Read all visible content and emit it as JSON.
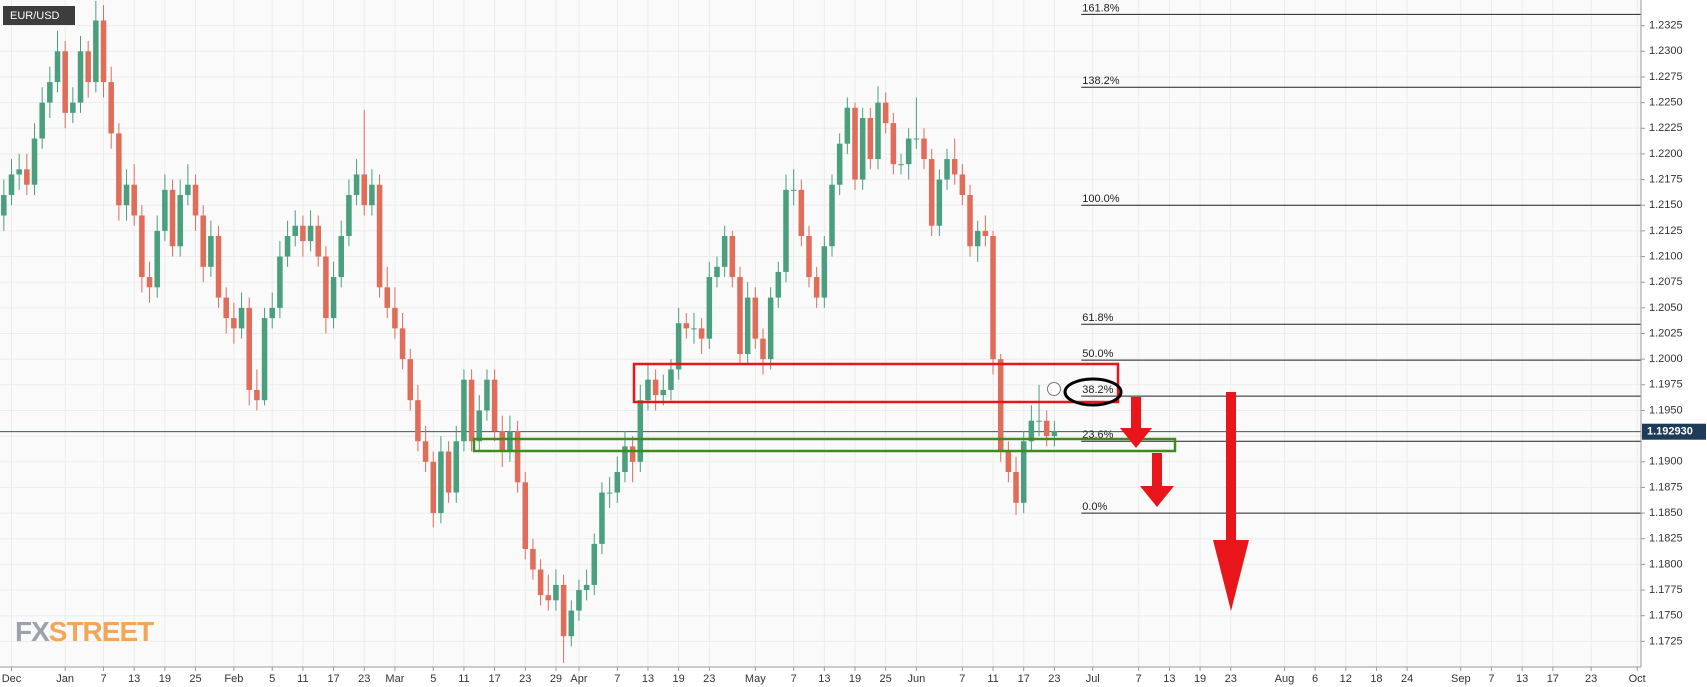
{
  "chart_data": {
    "type": "candlestick",
    "symbol": "EUR/USD",
    "logo_fx": "FX",
    "logo_street": "STREET",
    "up_color": "#4a9f7f",
    "down_color": "#e06c5a",
    "grid": true,
    "xlim": [
      -0.5,
      213.5
    ],
    "ylim": [
      1.17,
      1.235
    ],
    "yticks": [
      1.2325,
      {
        "value": 1.23,
        "label": "1.2300"
      },
      1.2275,
      {
        "value": 1.225,
        "label": "1.2250"
      },
      1.2225,
      {
        "value": 1.22,
        "label": "1.2200"
      },
      1.2175,
      {
        "value": 1.215,
        "label": "1.2150"
      },
      1.2125,
      {
        "value": 1.21,
        "label": "1.2100"
      },
      1.2075,
      {
        "value": 1.205,
        "label": "1.2050"
      },
      1.2025,
      {
        "value": 1.2,
        "label": "1.2000"
      },
      1.1975,
      {
        "value": 1.195,
        "label": "1.1950"
      },
      1.1925,
      {
        "value": 1.19,
        "label": "1.1900"
      },
      1.1875,
      {
        "value": 1.185,
        "label": "1.1850"
      },
      1.1825,
      {
        "value": 1.18,
        "label": "1.1800"
      },
      1.1775,
      {
        "value": 1.175,
        "label": "1.1750"
      },
      1.1725
    ],
    "xticks": [
      {
        "value": 1,
        "label": "Dec"
      },
      {
        "value": 8,
        "label": "Jan"
      },
      {
        "value": 13,
        "label": "7"
      },
      {
        "value": 17,
        "label": "13"
      },
      {
        "value": 21,
        "label": "19"
      },
      {
        "value": 25,
        "label": "25"
      },
      {
        "value": 30,
        "label": "Feb"
      },
      {
        "value": 35,
        "label": "5"
      },
      {
        "value": 39,
        "label": "11"
      },
      {
        "value": 43,
        "label": "17"
      },
      {
        "value": 47,
        "label": "23"
      },
      {
        "value": 51,
        "label": "Mar"
      },
      {
        "value": 56,
        "label": "5"
      },
      {
        "value": 60,
        "label": "11"
      },
      {
        "value": 64,
        "label": "17"
      },
      {
        "value": 68,
        "label": "23"
      },
      {
        "value": 72,
        "label": "29"
      },
      {
        "value": 75,
        "label": "Apr"
      },
      {
        "value": 80,
        "label": "7"
      },
      {
        "value": 84,
        "label": "13"
      },
      {
        "value": 88,
        "label": "19"
      },
      {
        "value": 92,
        "label": "23"
      },
      {
        "value": 98,
        "label": "May"
      },
      {
        "value": 103,
        "label": "7"
      },
      {
        "value": 107,
        "label": "13"
      },
      {
        "value": 111,
        "label": "19"
      },
      {
        "value": 115,
        "label": "25"
      },
      {
        "value": 119,
        "label": "Jun"
      },
      {
        "value": 125,
        "label": "7"
      },
      {
        "value": 129,
        "label": "11"
      },
      {
        "value": 133,
        "label": "17"
      },
      {
        "value": 137,
        "label": "23"
      },
      {
        "value": 142,
        "label": "Jul"
      },
      {
        "value": 148,
        "label": "7"
      },
      {
        "value": 152,
        "label": "13"
      },
      {
        "value": 156,
        "label": "19"
      },
      {
        "value": 160,
        "label": "23"
      },
      {
        "value": 167,
        "label": "Aug"
      },
      {
        "value": 171,
        "label": "6"
      },
      {
        "value": 175,
        "label": "12"
      },
      {
        "value": 179,
        "label": "18"
      },
      {
        "value": 183,
        "label": "24"
      },
      {
        "value": 190,
        "label": "Sep"
      },
      {
        "value": 194,
        "label": "7"
      },
      {
        "value": 198,
        "label": "13"
      },
      {
        "value": 202,
        "label": "17"
      },
      {
        "value": 207,
        "label": "23"
      },
      {
        "value": 213,
        "label": "Oct"
      }
    ],
    "last_price": {
      "value": 1.19293,
      "label": "1.192930"
    },
    "fib_x": 140.5,
    "fib_levels": [
      {
        "value": 1.2336,
        "label": "161.8%"
      },
      {
        "value": 1.2265,
        "label": "138.2%"
      },
      {
        "value": 1.215,
        "label": "100.0%"
      },
      {
        "value": 1.2034,
        "label": "61.8%"
      },
      {
        "value": 1.1999,
        "label": "50.0%"
      },
      {
        "value": 1.1964,
        "label": "38.2%"
      },
      {
        "value": 1.192,
        "label": "23.6%"
      },
      {
        "value": 1.185,
        "label": "0.0%"
      }
    ],
    "candles": [
      [
        1.214,
        1.2175,
        1.2125,
        1.216
      ],
      [
        1.216,
        1.2195,
        1.215,
        1.218
      ],
      [
        1.218,
        1.22,
        1.2165,
        1.2185
      ],
      [
        1.2185,
        1.22,
        1.216,
        1.217
      ],
      [
        1.217,
        1.223,
        1.216,
        1.2215
      ],
      [
        1.2215,
        1.2265,
        1.2205,
        1.225
      ],
      [
        1.225,
        1.2285,
        1.2235,
        1.227
      ],
      [
        1.227,
        1.232,
        1.226,
        1.23
      ],
      [
        1.23,
        1.231,
        1.2225,
        1.224
      ],
      [
        1.224,
        1.2265,
        1.223,
        1.225
      ],
      [
        1.225,
        1.2315,
        1.224,
        1.23
      ],
      [
        1.23,
        1.231,
        1.2255,
        1.227
      ],
      [
        1.227,
        1.2349,
        1.226,
        1.233
      ],
      [
        1.233,
        1.2345,
        1.2255,
        1.227
      ],
      [
        1.227,
        1.2285,
        1.2205,
        1.222
      ],
      [
        1.222,
        1.223,
        1.2135,
        1.215
      ],
      [
        1.215,
        1.2185,
        1.2135,
        1.217
      ],
      [
        1.217,
        1.219,
        1.213,
        1.214
      ],
      [
        1.214,
        1.215,
        1.2065,
        1.208
      ],
      [
        1.208,
        1.2095,
        1.2055,
        1.207
      ],
      [
        1.207,
        1.214,
        1.206,
        1.2125
      ],
      [
        1.2125,
        1.218,
        1.2115,
        1.2165
      ],
      [
        1.2165,
        1.2175,
        1.21,
        1.211
      ],
      [
        1.211,
        1.2175,
        1.21,
        1.216
      ],
      [
        1.216,
        1.219,
        1.215,
        1.217
      ],
      [
        1.217,
        1.218,
        1.2125,
        1.214
      ],
      [
        1.214,
        1.215,
        1.2075,
        1.209
      ],
      [
        1.209,
        1.2135,
        1.208,
        1.212
      ],
      [
        1.212,
        1.213,
        1.205,
        1.206
      ],
      [
        1.206,
        1.207,
        1.2025,
        1.204
      ],
      [
        1.204,
        1.2055,
        1.2015,
        1.203
      ],
      [
        1.203,
        1.2065,
        1.202,
        1.205
      ],
      [
        1.205,
        1.206,
        1.1955,
        1.197
      ],
      [
        1.197,
        1.199,
        1.195,
        1.196
      ],
      [
        1.196,
        1.205,
        1.1955,
        1.204
      ],
      [
        1.204,
        1.2065,
        1.203,
        1.205
      ],
      [
        1.205,
        1.2115,
        1.204,
        1.21
      ],
      [
        1.21,
        1.2135,
        1.209,
        1.212
      ],
      [
        1.212,
        1.2145,
        1.211,
        1.213
      ],
      [
        1.213,
        1.214,
        1.21,
        1.2115
      ],
      [
        1.2115,
        1.2145,
        1.2105,
        1.213
      ],
      [
        1.213,
        1.214,
        1.209,
        1.21
      ],
      [
        1.21,
        1.211,
        1.2025,
        1.204
      ],
      [
        1.204,
        1.2095,
        1.203,
        1.208
      ],
      [
        1.208,
        1.2135,
        1.207,
        1.212
      ],
      [
        1.212,
        1.2175,
        1.211,
        1.216
      ],
      [
        1.216,
        1.2195,
        1.215,
        1.218
      ],
      [
        1.218,
        1.2243,
        1.214,
        1.215
      ],
      [
        1.215,
        1.2185,
        1.214,
        1.217
      ],
      [
        1.217,
        1.218,
        1.206,
        1.207
      ],
      [
        1.207,
        1.209,
        1.204,
        1.205
      ],
      [
        1.205,
        1.207,
        1.202,
        1.203
      ],
      [
        1.203,
        1.2045,
        1.199,
        1.2
      ],
      [
        1.2,
        1.201,
        1.195,
        1.196
      ],
      [
        1.196,
        1.1975,
        1.191,
        1.192
      ],
      [
        1.192,
        1.1935,
        1.189,
        1.19
      ],
      [
        1.19,
        1.191,
        1.1836,
        1.185
      ],
      [
        1.185,
        1.1925,
        1.184,
        1.191
      ],
      [
        1.191,
        1.192,
        1.186,
        1.187
      ],
      [
        1.187,
        1.1935,
        1.186,
        1.192
      ],
      [
        1.192,
        1.199,
        1.191,
        1.198
      ],
      [
        1.198,
        1.199,
        1.191,
        1.192
      ],
      [
        1.192,
        1.1965,
        1.191,
        1.195
      ],
      [
        1.195,
        1.199,
        1.194,
        1.198
      ],
      [
        1.198,
        1.199,
        1.192,
        1.193
      ],
      [
        1.193,
        1.1945,
        1.1895,
        1.191
      ],
      [
        1.191,
        1.1945,
        1.19,
        1.193
      ],
      [
        1.193,
        1.194,
        1.187,
        1.188
      ],
      [
        1.188,
        1.189,
        1.1805,
        1.1815
      ],
      [
        1.1815,
        1.1825,
        1.1785,
        1.1795
      ],
      [
        1.1795,
        1.1805,
        1.176,
        1.177
      ],
      [
        1.177,
        1.179,
        1.1755,
        1.1765
      ],
      [
        1.1765,
        1.1795,
        1.1755,
        1.178
      ],
      [
        1.178,
        1.179,
        1.1704,
        1.173
      ],
      [
        1.173,
        1.1765,
        1.172,
        1.1755
      ],
      [
        1.1755,
        1.1785,
        1.1745,
        1.1775
      ],
      [
        1.1775,
        1.1795,
        1.1765,
        1.178
      ],
      [
        1.178,
        1.183,
        1.177,
        1.182
      ],
      [
        1.182,
        1.188,
        1.181,
        1.187
      ],
      [
        1.187,
        1.1885,
        1.1855,
        1.187
      ],
      [
        1.187,
        1.1905,
        1.186,
        1.189
      ],
      [
        1.189,
        1.193,
        1.188,
        1.1915
      ],
      [
        1.1915,
        1.1925,
        1.188,
        1.19
      ],
      [
        1.19,
        1.1975,
        1.189,
        1.196
      ],
      [
        1.196,
        1.1995,
        1.195,
        1.198
      ],
      [
        1.198,
        1.199,
        1.195,
        1.1965
      ],
      [
        1.1965,
        1.1985,
        1.1955,
        1.197
      ],
      [
        1.197,
        1.2,
        1.196,
        1.199
      ],
      [
        1.199,
        1.205,
        1.198,
        1.2035
      ],
      [
        1.2035,
        1.2045,
        1.202,
        1.203
      ],
      [
        1.203,
        1.2045,
        1.2015,
        1.203
      ],
      [
        1.203,
        1.204,
        1.2005,
        1.202
      ],
      [
        1.202,
        1.2095,
        1.201,
        1.208
      ],
      [
        1.208,
        1.21,
        1.207,
        1.209
      ],
      [
        1.209,
        1.213,
        1.208,
        1.212
      ],
      [
        1.212,
        1.2125,
        1.207,
        1.208
      ],
      [
        1.208,
        1.209,
        1.1995,
        1.2005
      ],
      [
        1.2005,
        1.2075,
        1.1995,
        1.206
      ],
      [
        1.206,
        1.207,
        1.201,
        1.202
      ],
      [
        1.202,
        1.203,
        1.1985,
        1.2
      ],
      [
        1.2,
        1.207,
        1.199,
        1.206
      ],
      [
        1.206,
        1.2095,
        1.205,
        1.2085
      ],
      [
        1.2085,
        1.218,
        1.2075,
        1.2165
      ],
      [
        1.2165,
        1.2185,
        1.215,
        1.2165
      ],
      [
        1.2165,
        1.2175,
        1.211,
        1.212
      ],
      [
        1.212,
        1.213,
        1.207,
        1.208
      ],
      [
        1.208,
        1.209,
        1.205,
        1.206
      ],
      [
        1.206,
        1.212,
        1.205,
        1.211
      ],
      [
        1.211,
        1.218,
        1.21,
        1.217
      ],
      [
        1.217,
        1.222,
        1.216,
        1.221
      ],
      [
        1.221,
        1.2255,
        1.22,
        1.2245
      ],
      [
        1.2245,
        1.225,
        1.2165,
        1.2175
      ],
      [
        1.2175,
        1.2245,
        1.2165,
        1.2235
      ],
      [
        1.2235,
        1.2245,
        1.2185,
        1.2195
      ],
      [
        1.2195,
        1.2266,
        1.2185,
        1.225
      ],
      [
        1.225,
        1.226,
        1.222,
        1.223
      ],
      [
        1.223,
        1.224,
        1.218,
        1.219
      ],
      [
        1.219,
        1.22,
        1.218,
        1.219
      ],
      [
        1.219,
        1.2225,
        1.2175,
        1.2215
      ],
      [
        1.2215,
        1.2255,
        1.2205,
        1.2215
      ],
      [
        1.2215,
        1.2225,
        1.2185,
        1.2195
      ],
      [
        1.2195,
        1.2205,
        1.212,
        1.213
      ],
      [
        1.213,
        1.2185,
        1.212,
        1.2175
      ],
      [
        1.2175,
        1.2205,
        1.2165,
        1.2195
      ],
      [
        1.2195,
        1.2215,
        1.217,
        1.218
      ],
      [
        1.218,
        1.219,
        1.215,
        1.216
      ],
      [
        1.216,
        1.217,
        1.21,
        1.211
      ],
      [
        1.211,
        1.2135,
        1.2095,
        1.2125
      ],
      [
        1.2125,
        1.214,
        1.211,
        1.212
      ],
      [
        1.212,
        1.2125,
        1.1985,
        1.2
      ],
      [
        1.2,
        1.2005,
        1.19,
        1.191
      ],
      [
        1.191,
        1.192,
        1.188,
        1.189
      ],
      [
        1.189,
        1.1905,
        1.1848,
        1.186
      ],
      [
        1.186,
        1.193,
        1.185,
        1.192
      ],
      [
        1.192,
        1.1955,
        1.191,
        1.194
      ],
      [
        1.194,
        1.1975,
        1.1925,
        1.194
      ],
      [
        1.194,
        1.195,
        1.1915,
        1.1925
      ],
      [
        1.1925,
        1.194,
        1.1915,
        1.193
      ]
    ]
  }
}
